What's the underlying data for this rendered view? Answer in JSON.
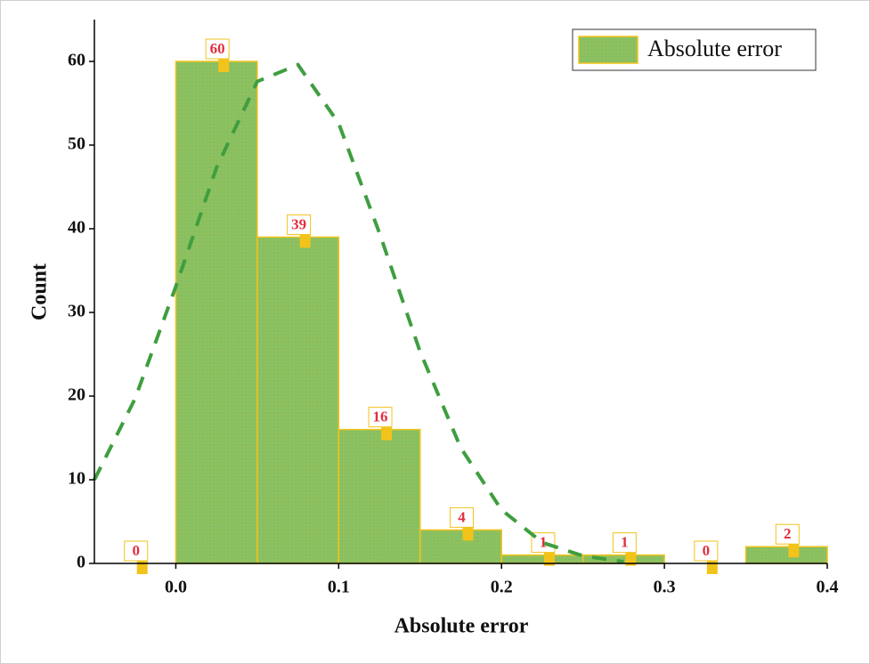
{
  "chart_data": {
    "type": "histogram",
    "xlabel": "Absolute error",
    "ylabel": "Count",
    "bins": [
      -0.05,
      0,
      0.05,
      0.1,
      0.15,
      0.2,
      0.25,
      0.3,
      0.35,
      0.4
    ],
    "series": [
      {
        "name": "Absolute error",
        "color": "#86c062",
        "edgecolor": "#f2c31b",
        "values": [
          0,
          60,
          39,
          16,
          4,
          1,
          1,
          0,
          2
        ]
      }
    ],
    "fit": {
      "color": "#3f9e3f",
      "x": [
        -0.05,
        -0.025,
        0,
        0.025,
        0.05,
        0.075,
        0.1,
        0.125,
        0.15,
        0.175,
        0.2,
        0.225,
        0.25,
        0.275
      ],
      "values": [
        10,
        19.7,
        33.1,
        47.3,
        57.6,
        59.6,
        52.6,
        39.5,
        25.3,
        13.8,
        6.4,
        2.5,
        0.9,
        0.2
      ]
    },
    "xlim": [
      -0.05,
      0.4
    ],
    "ylim": [
      0,
      65
    ],
    "xticks": [
      {
        "value": 0,
        "label": "0.0"
      },
      0.1,
      0.2,
      0.3,
      0.4
    ],
    "yticks": [
      0,
      10,
      20,
      30,
      40,
      50,
      60
    ],
    "legend": "upper right"
  }
}
